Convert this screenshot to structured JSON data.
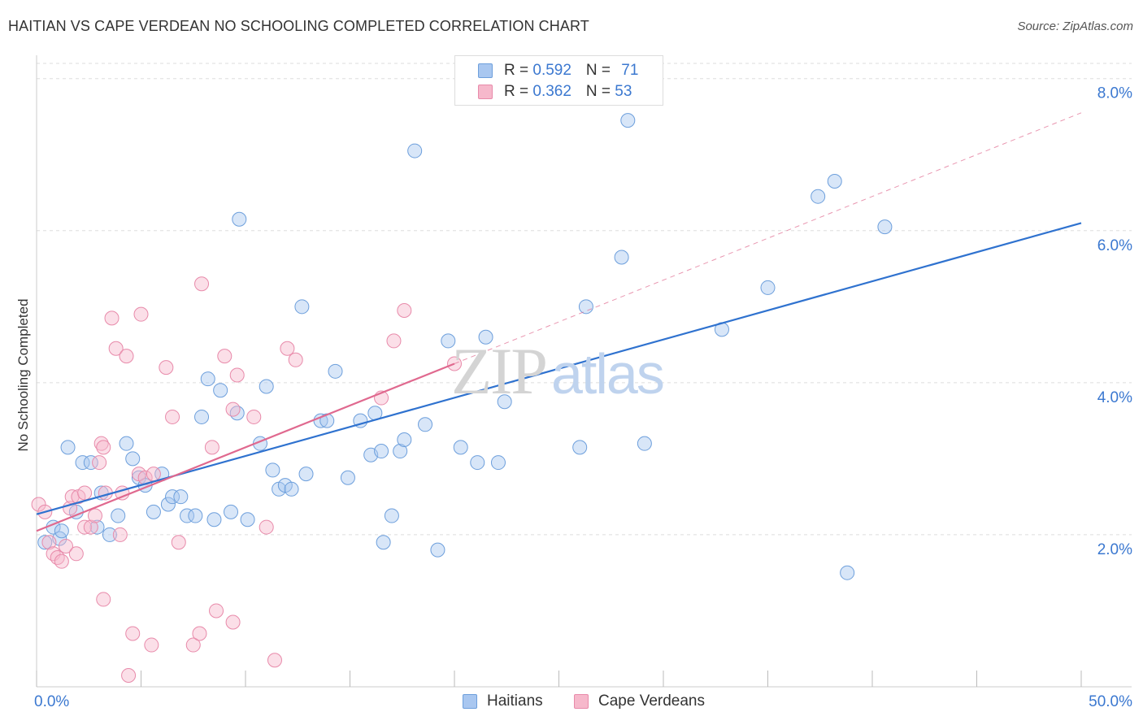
{
  "header": {
    "title": "HAITIAN VS CAPE VERDEAN NO SCHOOLING COMPLETED CORRELATION CHART",
    "source": "Source: ZipAtlas.com"
  },
  "watermark": {
    "zip": "ZIP",
    "atlas": "atlas"
  },
  "legend": {
    "r_label": "R = ",
    "n_label": "N = ",
    "series": [
      {
        "r": "0.592",
        "n": "71"
      },
      {
        "r": "0.362",
        "n": "53"
      }
    ]
  },
  "bottom_legend": {
    "labels": [
      "Haitians",
      "Cape Verdeans"
    ]
  },
  "colors": {
    "blue_fill": "#a9c7f0",
    "blue_stroke": "#6d9fdc",
    "blue_line": "#2f72cf",
    "pink_fill": "#f6b8cb",
    "pink_stroke": "#e88aaa",
    "pink_line": "#e0698f",
    "axis_text": "#3b78d0",
    "grid": "#dddddd"
  },
  "chart_data": {
    "type": "scatter",
    "title": "HAITIAN VS CAPE VERDEAN NO SCHOOLING COMPLETED CORRELATION CHART",
    "xlabel": "",
    "ylabel": "No Schooling Completed",
    "xlim": [
      0,
      50
    ],
    "ylim": [
      0,
      8.2
    ],
    "x_tick_labels": [
      "0.0%",
      "50.0%"
    ],
    "y_ticks": [
      2,
      4,
      6,
      8
    ],
    "y_tick_labels": [
      "2.0%",
      "4.0%",
      "6.0%",
      "8.0%"
    ],
    "grid": true,
    "legend_position": "top-center",
    "series": [
      {
        "name": "Haitians",
        "r": 0.592,
        "n": 71,
        "trend": {
          "x0": 0,
          "y0": 2.27,
          "x1": 50,
          "y1": 6.1,
          "extends_dashed": false
        },
        "points": [
          [
            0.4,
            1.9
          ],
          [
            0.8,
            2.1
          ],
          [
            1.1,
            1.95
          ],
          [
            1.2,
            2.05
          ],
          [
            1.5,
            3.15
          ],
          [
            1.9,
            2.3
          ],
          [
            2.2,
            2.95
          ],
          [
            2.6,
            2.95
          ],
          [
            2.9,
            2.1
          ],
          [
            3.1,
            2.55
          ],
          [
            3.5,
            2.0
          ],
          [
            3.9,
            2.25
          ],
          [
            4.3,
            3.2
          ],
          [
            4.6,
            3.0
          ],
          [
            4.9,
            2.75
          ],
          [
            5.2,
            2.65
          ],
          [
            5.6,
            2.3
          ],
          [
            6.0,
            2.8
          ],
          [
            6.3,
            2.4
          ],
          [
            6.5,
            2.5
          ],
          [
            6.9,
            2.5
          ],
          [
            7.2,
            2.25
          ],
          [
            7.6,
            2.25
          ],
          [
            7.9,
            3.55
          ],
          [
            8.2,
            4.05
          ],
          [
            8.5,
            2.2
          ],
          [
            8.8,
            3.9
          ],
          [
            9.3,
            2.3
          ],
          [
            9.6,
            3.6
          ],
          [
            9.7,
            6.15
          ],
          [
            10.1,
            2.2
          ],
          [
            10.7,
            3.2
          ],
          [
            11.0,
            3.95
          ],
          [
            11.3,
            2.85
          ],
          [
            11.6,
            2.6
          ],
          [
            11.9,
            2.65
          ],
          [
            12.2,
            2.6
          ],
          [
            12.7,
            5.0
          ],
          [
            12.9,
            2.8
          ],
          [
            13.6,
            3.5
          ],
          [
            13.9,
            3.5
          ],
          [
            14.3,
            4.15
          ],
          [
            14.9,
            2.75
          ],
          [
            15.5,
            3.5
          ],
          [
            16.0,
            3.05
          ],
          [
            16.2,
            3.6
          ],
          [
            16.5,
            3.1
          ],
          [
            16.6,
            1.9
          ],
          [
            17.0,
            2.25
          ],
          [
            17.4,
            3.1
          ],
          [
            17.6,
            3.25
          ],
          [
            18.1,
            7.05
          ],
          [
            18.6,
            3.45
          ],
          [
            19.2,
            1.8
          ],
          [
            19.7,
            4.55
          ],
          [
            20.3,
            3.15
          ],
          [
            21.1,
            2.95
          ],
          [
            21.5,
            4.6
          ],
          [
            22.1,
            2.95
          ],
          [
            22.4,
            3.75
          ],
          [
            26.0,
            3.15
          ],
          [
            26.3,
            5.0
          ],
          [
            28.0,
            5.65
          ],
          [
            28.3,
            7.45
          ],
          [
            29.1,
            3.2
          ],
          [
            32.8,
            4.7
          ],
          [
            35.0,
            5.25
          ],
          [
            37.4,
            6.45
          ],
          [
            38.2,
            6.65
          ],
          [
            38.8,
            1.5
          ],
          [
            40.6,
            6.05
          ]
        ]
      },
      {
        "name": "Cape Verdeans",
        "r": 0.362,
        "n": 53,
        "trend": {
          "x0": 0,
          "y0": 2.05,
          "x1": 20,
          "y1": 4.25,
          "x_dash_end": 50,
          "y_dash_end": 7.55,
          "extends_dashed": true
        },
        "points": [
          [
            0.1,
            2.4
          ],
          [
            0.4,
            2.3
          ],
          [
            0.6,
            1.9
          ],
          [
            0.8,
            1.75
          ],
          [
            1.0,
            1.7
          ],
          [
            1.2,
            1.65
          ],
          [
            1.4,
            1.85
          ],
          [
            1.6,
            2.35
          ],
          [
            1.7,
            2.5
          ],
          [
            1.9,
            1.75
          ],
          [
            2.0,
            2.5
          ],
          [
            2.3,
            2.55
          ],
          [
            2.3,
            2.1
          ],
          [
            2.6,
            2.1
          ],
          [
            2.8,
            2.25
          ],
          [
            3.0,
            2.95
          ],
          [
            3.1,
            3.2
          ],
          [
            3.2,
            1.15
          ],
          [
            3.2,
            3.15
          ],
          [
            3.3,
            2.55
          ],
          [
            3.6,
            4.85
          ],
          [
            3.8,
            4.45
          ],
          [
            4.0,
            2.0
          ],
          [
            4.1,
            2.55
          ],
          [
            4.3,
            4.35
          ],
          [
            4.4,
            0.15
          ],
          [
            4.6,
            0.7
          ],
          [
            4.9,
            2.8
          ],
          [
            5.0,
            4.9
          ],
          [
            5.2,
            2.75
          ],
          [
            5.5,
            0.55
          ],
          [
            5.6,
            2.8
          ],
          [
            6.2,
            4.2
          ],
          [
            6.5,
            3.55
          ],
          [
            6.8,
            1.9
          ],
          [
            7.5,
            0.55
          ],
          [
            7.8,
            0.7
          ],
          [
            7.9,
            5.3
          ],
          [
            8.4,
            3.15
          ],
          [
            8.6,
            1.0
          ],
          [
            9.0,
            4.35
          ],
          [
            9.4,
            0.85
          ],
          [
            9.6,
            4.1
          ],
          [
            9.4,
            3.65
          ],
          [
            10.4,
            3.55
          ],
          [
            11.0,
            2.1
          ],
          [
            11.4,
            0.35
          ],
          [
            12.0,
            4.45
          ],
          [
            12.4,
            4.3
          ],
          [
            16.5,
            3.8
          ],
          [
            17.1,
            4.55
          ],
          [
            17.6,
            4.95
          ],
          [
            20.0,
            4.25
          ]
        ]
      }
    ]
  }
}
